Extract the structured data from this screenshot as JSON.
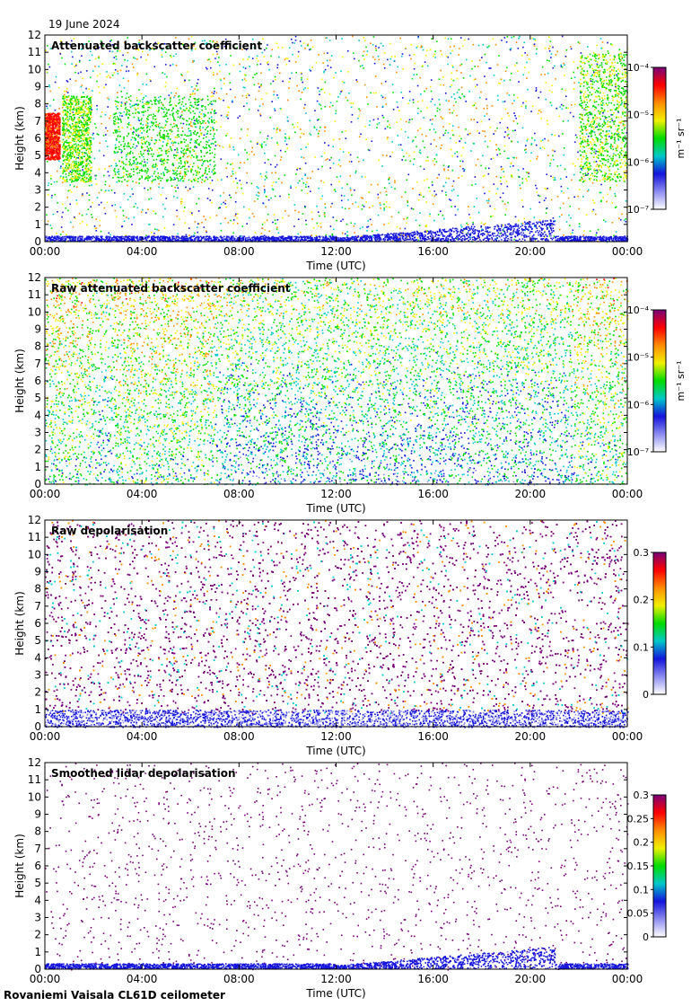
{
  "date": "19 June 2024",
  "footer": "Rovaniemi Vaisala CL61D ceilometer",
  "colors": {
    "background": "#ffffff",
    "no_signal": "#d6d6d6",
    "frame": "#000000",
    "colormap": [
      "#ffffff",
      "#8c8cf0",
      "#1414dc",
      "#00c8c8",
      "#00dc00",
      "#f0f000",
      "#ff8c00",
      "#ff0000",
      "#780078"
    ]
  },
  "chart_data": [
    {
      "type": "heatmap",
      "title": "Attenuated backscatter coefficient",
      "xlabel": "Time (UTC)",
      "ylabel": "Height (km)",
      "xticks": [
        "00:00",
        "04:00",
        "08:00",
        "12:00",
        "16:00",
        "20:00",
        "00:00"
      ],
      "xlim_hours": [
        0,
        24
      ],
      "yticks": [
        "0",
        "1",
        "2",
        "3",
        "4",
        "5",
        "6",
        "7",
        "8",
        "9",
        "10",
        "11",
        "12"
      ],
      "ylim_km": [
        0,
        12
      ],
      "colorbar": {
        "scale": "log",
        "ticks": [
          "10⁻⁴",
          "10⁻⁵",
          "10⁻⁶",
          "10⁻⁷"
        ],
        "label": "m⁻¹ sr⁻¹"
      },
      "cloud_layers": [
        {
          "t0": 0.0,
          "t1": 0.6,
          "h0": 4.8,
          "h1": 7.5,
          "level": 0.85
        },
        {
          "t0": 0.7,
          "t1": 1.9,
          "h0": 3.5,
          "h1": 8.5,
          "level": 0.55
        },
        {
          "t0": 2.8,
          "t1": 7.0,
          "h0": 3.5,
          "h1": 8.5,
          "level": 0.5
        },
        {
          "t0": 22.0,
          "t1": 24.0,
          "h0": 3.5,
          "h1": 11.0,
          "level": 0.55
        }
      ]
    },
    {
      "type": "heatmap",
      "title": "Raw attenuated backscatter coefficient",
      "xlabel": "Time (UTC)",
      "ylabel": "Height (km)",
      "xticks": [
        "00:00",
        "04:00",
        "08:00",
        "12:00",
        "16:00",
        "20:00",
        "00:00"
      ],
      "xlim_hours": [
        0,
        24
      ],
      "yticks": [
        "0",
        "1",
        "2",
        "3",
        "4",
        "5",
        "6",
        "7",
        "8",
        "9",
        "10",
        "11",
        "12"
      ],
      "ylim_km": [
        0,
        12
      ],
      "colorbar": {
        "scale": "log",
        "ticks": [
          "10⁻⁴",
          "10⁻⁵",
          "10⁻⁶",
          "10⁻⁷"
        ],
        "label": "m⁻¹ sr⁻¹"
      }
    },
    {
      "type": "heatmap",
      "title": "Raw depolarisation",
      "xlabel": "Time (UTC)",
      "ylabel": "Height (km)",
      "xticks": [
        "00:00",
        "04:00",
        "08:00",
        "12:00",
        "16:00",
        "20:00",
        "00:00"
      ],
      "xlim_hours": [
        0,
        24
      ],
      "yticks": [
        "0",
        "1",
        "2",
        "3",
        "4",
        "5",
        "6",
        "7",
        "8",
        "9",
        "10",
        "11",
        "12"
      ],
      "ylim_km": [
        0,
        12
      ],
      "colorbar": {
        "scale": "linear",
        "range": [
          0,
          0.3
        ],
        "ticks": [
          "0.3",
          "0.2",
          "0.1",
          "0"
        ],
        "label": ""
      }
    },
    {
      "type": "heatmap",
      "title": "Smoothed lidar depolarisation",
      "xlabel": "Time (UTC)",
      "ylabel": "Height (km)",
      "xticks": [
        "00:00",
        "04:00",
        "08:00",
        "12:00",
        "16:00",
        "20:00",
        "00:00"
      ],
      "xlim_hours": [
        0,
        24
      ],
      "yticks": [
        "0",
        "1",
        "2",
        "3",
        "4",
        "5",
        "6",
        "7",
        "8",
        "9",
        "10",
        "11",
        "12"
      ],
      "ylim_km": [
        0,
        12
      ],
      "colorbar": {
        "scale": "linear",
        "range": [
          0,
          0.3
        ],
        "ticks": [
          "0.3",
          "0.25",
          "0.2",
          "0.15",
          "0.1",
          "0.05",
          "0"
        ],
        "label": ""
      }
    }
  ]
}
